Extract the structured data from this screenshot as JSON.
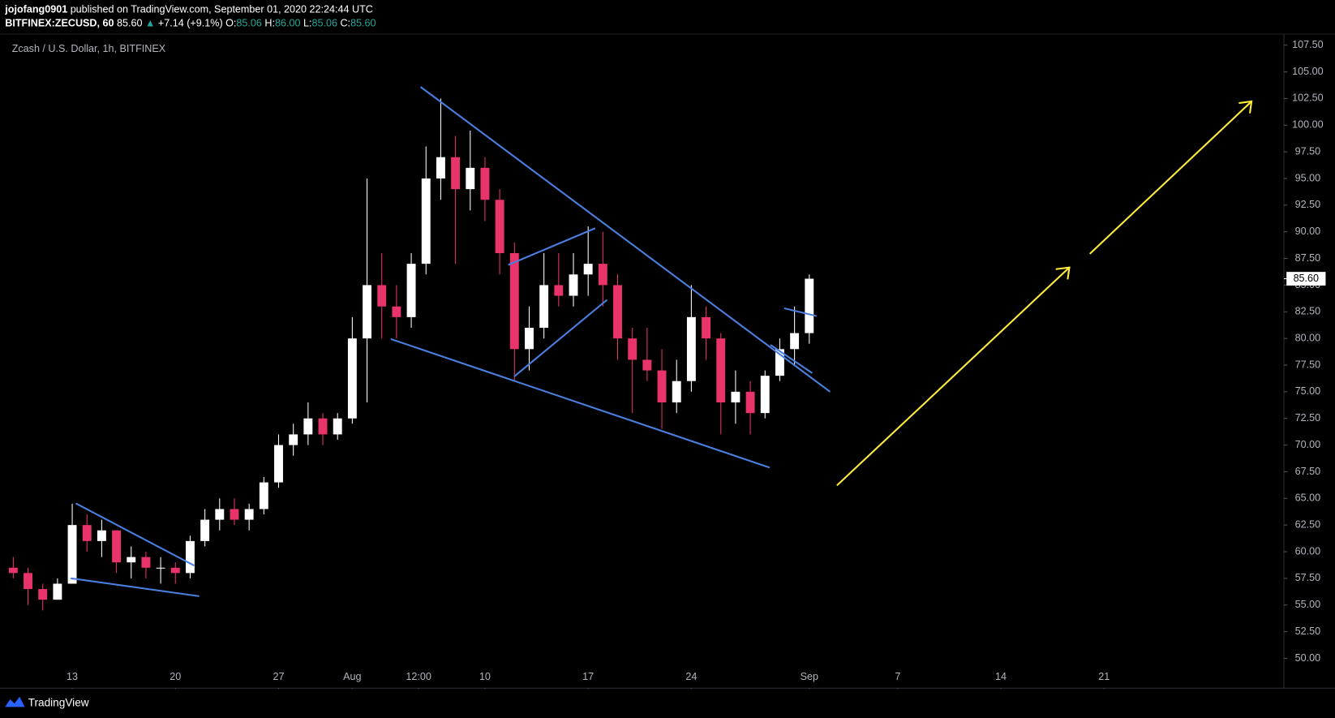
{
  "header": {
    "publisher": "jojofang0901",
    "published": "published on TradingView.com, September 01, 2020 22:24:44 UTC",
    "symbol": "BITFINEX:ZECUSD, 60",
    "last": "85.60",
    "change": "+7.14 (+9.1%)",
    "ohlc": [
      {
        "key": "O:",
        "value": "85.06"
      },
      {
        "key": "H:",
        "value": "86.00"
      },
      {
        "key": "L:",
        "value": "85.06"
      },
      {
        "key": "C:",
        "value": "85.60"
      }
    ]
  },
  "footer": {
    "brand": "TradingView"
  },
  "chart_data": {
    "type": "candlestick",
    "title": "Zcash / U.S. Dollar, 1h, BITFINEX",
    "up_color": "#ffffff",
    "down_color": "#e8336b",
    "x": [
      9,
      10,
      11,
      12,
      13,
      14,
      15,
      16,
      17,
      18,
      19,
      20,
      21,
      22,
      23,
      24,
      25,
      26,
      27,
      28,
      29,
      30,
      31,
      32,
      33,
      34,
      35,
      36,
      37,
      38,
      39,
      40,
      41,
      42,
      43,
      44,
      45,
      46,
      47,
      48,
      49,
      50,
      51,
      52,
      53,
      54,
      55,
      56,
      57,
      58,
      59,
      60,
      61,
      62,
      63
    ],
    "open": [
      58.5,
      58,
      56.5,
      55.5,
      57,
      62.5,
      61,
      62,
      59,
      59.5,
      58.5,
      58.5,
      58,
      61,
      63,
      64,
      63,
      64,
      66.5,
      70,
      71,
      72.5,
      71,
      72.5,
      80,
      85,
      83,
      82,
      87,
      95,
      97,
      94,
      96,
      93,
      88,
      79,
      81,
      85,
      84,
      86,
      87,
      85,
      80,
      78,
      77,
      74,
      76,
      82,
      80,
      74,
      75,
      73,
      76.5,
      79,
      80.5
    ],
    "high": [
      59.5,
      58.5,
      57,
      57.5,
      64.5,
      63.5,
      63,
      62,
      60.5,
      60,
      59.5,
      59,
      61.5,
      64,
      65,
      65,
      64.5,
      67,
      71,
      72,
      74,
      73,
      73,
      82,
      95,
      88,
      85,
      88,
      98,
      102.5,
      99,
      99.5,
      97,
      94,
      89,
      83,
      88,
      88,
      88,
      90.5,
      90,
      86,
      81,
      81,
      79,
      78,
      85,
      83,
      80.5,
      77,
      76,
      77,
      80,
      83,
      86
    ],
    "low": [
      57.5,
      55,
      54.5,
      55.5,
      57,
      60,
      59.5,
      58,
      57.5,
      57.5,
      57,
      57,
      57.5,
      60.5,
      62,
      62.5,
      62,
      63.5,
      66,
      69,
      70,
      70,
      70.5,
      72,
      74,
      80,
      80,
      81,
      86,
      93,
      87,
      92,
      91,
      86,
      76,
      77,
      80,
      83,
      83,
      84,
      83,
      78,
      73,
      76,
      71.5,
      73,
      75,
      78,
      71,
      72,
      71,
      72.5,
      76,
      77.5,
      79.5
    ],
    "close": [
      58,
      56.5,
      55.5,
      57,
      62.5,
      61,
      62,
      59,
      59.5,
      58.5,
      58.5,
      58,
      61,
      63,
      64,
      63,
      64,
      66.5,
      70,
      71,
      72.5,
      71,
      72.5,
      80,
      85,
      83,
      82,
      87,
      95,
      97,
      94,
      96,
      93,
      88,
      79,
      81,
      85,
      84,
      86,
      87,
      85,
      80,
      78,
      77,
      74,
      76,
      82,
      80,
      74,
      75,
      73,
      76.5,
      79,
      80.5,
      85.6
    ],
    "xlim": [
      8.1,
      95.2
    ],
    "xticks": [
      {
        "value": 13,
        "label": "13"
      },
      {
        "value": 20,
        "label": "20"
      },
      {
        "value": 27,
        "label": "27"
      },
      {
        "value": 32,
        "label": "Aug"
      },
      {
        "value": 36.5,
        "label": "12:00"
      },
      {
        "value": 41,
        "label": "10"
      },
      {
        "value": 48,
        "label": "17"
      },
      {
        "value": 55,
        "label": "24"
      },
      {
        "value": 63,
        "label": "Sep"
      },
      {
        "value": 69,
        "label": "7"
      },
      {
        "value": 76,
        "label": "14"
      },
      {
        "value": 83,
        "label": "21"
      }
    ],
    "ylim": [
      49.04,
      108.54
    ],
    "yticks": [
      {
        "value": 50,
        "label": "50.00"
      },
      {
        "value": 52.5,
        "label": "52.50"
      },
      {
        "value": 55,
        "label": "55.00"
      },
      {
        "value": 57.5,
        "label": "57.50"
      },
      {
        "value": 60,
        "label": "60.00"
      },
      {
        "value": 62.5,
        "label": "62.50"
      },
      {
        "value": 65,
        "label": "65.00"
      },
      {
        "value": 67.5,
        "label": "67.50"
      },
      {
        "value": 70,
        "label": "70.00"
      },
      {
        "value": 72.5,
        "label": "72.50"
      },
      {
        "value": 75,
        "label": "75.00"
      },
      {
        "value": 77.5,
        "label": "77.50"
      },
      {
        "value": 80,
        "label": "80.00"
      },
      {
        "value": 82.5,
        "label": "82.50"
      },
      {
        "value": 85,
        "label": "85.00"
      },
      {
        "value": 87.5,
        "label": "87.50"
      },
      {
        "value": 90,
        "label": "90.00"
      },
      {
        "value": 92.5,
        "label": "92.50"
      },
      {
        "value": 95,
        "label": "95.00"
      },
      {
        "value": 97.5,
        "label": "97.50"
      },
      {
        "value": 100,
        "label": "100.00"
      },
      {
        "value": 102.5,
        "label": "102.50"
      },
      {
        "value": 105,
        "label": "105.00"
      },
      {
        "value": 107.5,
        "label": "107.50"
      }
    ],
    "last_price": {
      "value": 85.6,
      "label": "85.60"
    }
  }
}
